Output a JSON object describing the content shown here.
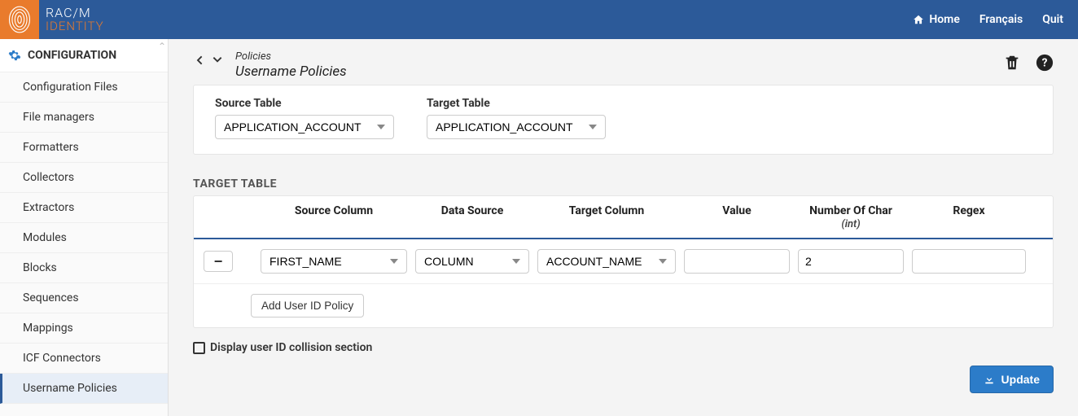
{
  "brand": {
    "top": "RAC/M",
    "bottom": "IDENTITY"
  },
  "topnav": {
    "home": "Home",
    "lang": "Français",
    "quit": "Quit"
  },
  "sidebar": {
    "header": "CONFIGURATION",
    "items": [
      {
        "label": "Configuration Files",
        "active": false
      },
      {
        "label": "File managers",
        "active": false
      },
      {
        "label": "Formatters",
        "active": false
      },
      {
        "label": "Collectors",
        "active": false
      },
      {
        "label": "Extractors",
        "active": false
      },
      {
        "label": "Modules",
        "active": false
      },
      {
        "label": "Blocks",
        "active": false
      },
      {
        "label": "Sequences",
        "active": false
      },
      {
        "label": "Mappings",
        "active": false
      },
      {
        "label": "ICF Connectors",
        "active": false
      },
      {
        "label": "Username Policies",
        "active": true
      }
    ]
  },
  "page": {
    "crumb": "Policies",
    "title": "Username Policies"
  },
  "tables_form": {
    "source_label": "Source Table",
    "source_value": "APPLICATION_ACCOUNT",
    "target_label": "Target Table",
    "target_value": "APPLICATION_ACCOUNT"
  },
  "target_section": {
    "heading": "TARGET TABLE",
    "headers": {
      "source_col": "Source Column",
      "data_source": "Data Source",
      "target_col": "Target Column",
      "value": "Value",
      "num_char": "Number Of Char",
      "num_char_sub": "(int)",
      "regex": "Regex"
    },
    "row": {
      "source_col": "FIRST_NAME",
      "data_source": "COLUMN",
      "target_col": "ACCOUNT_NAME",
      "value": "",
      "num_char": "2",
      "regex": ""
    },
    "add_btn": "Add User ID Policy"
  },
  "collision_checkbox": "Display user ID collision section",
  "update_btn": "Update"
}
